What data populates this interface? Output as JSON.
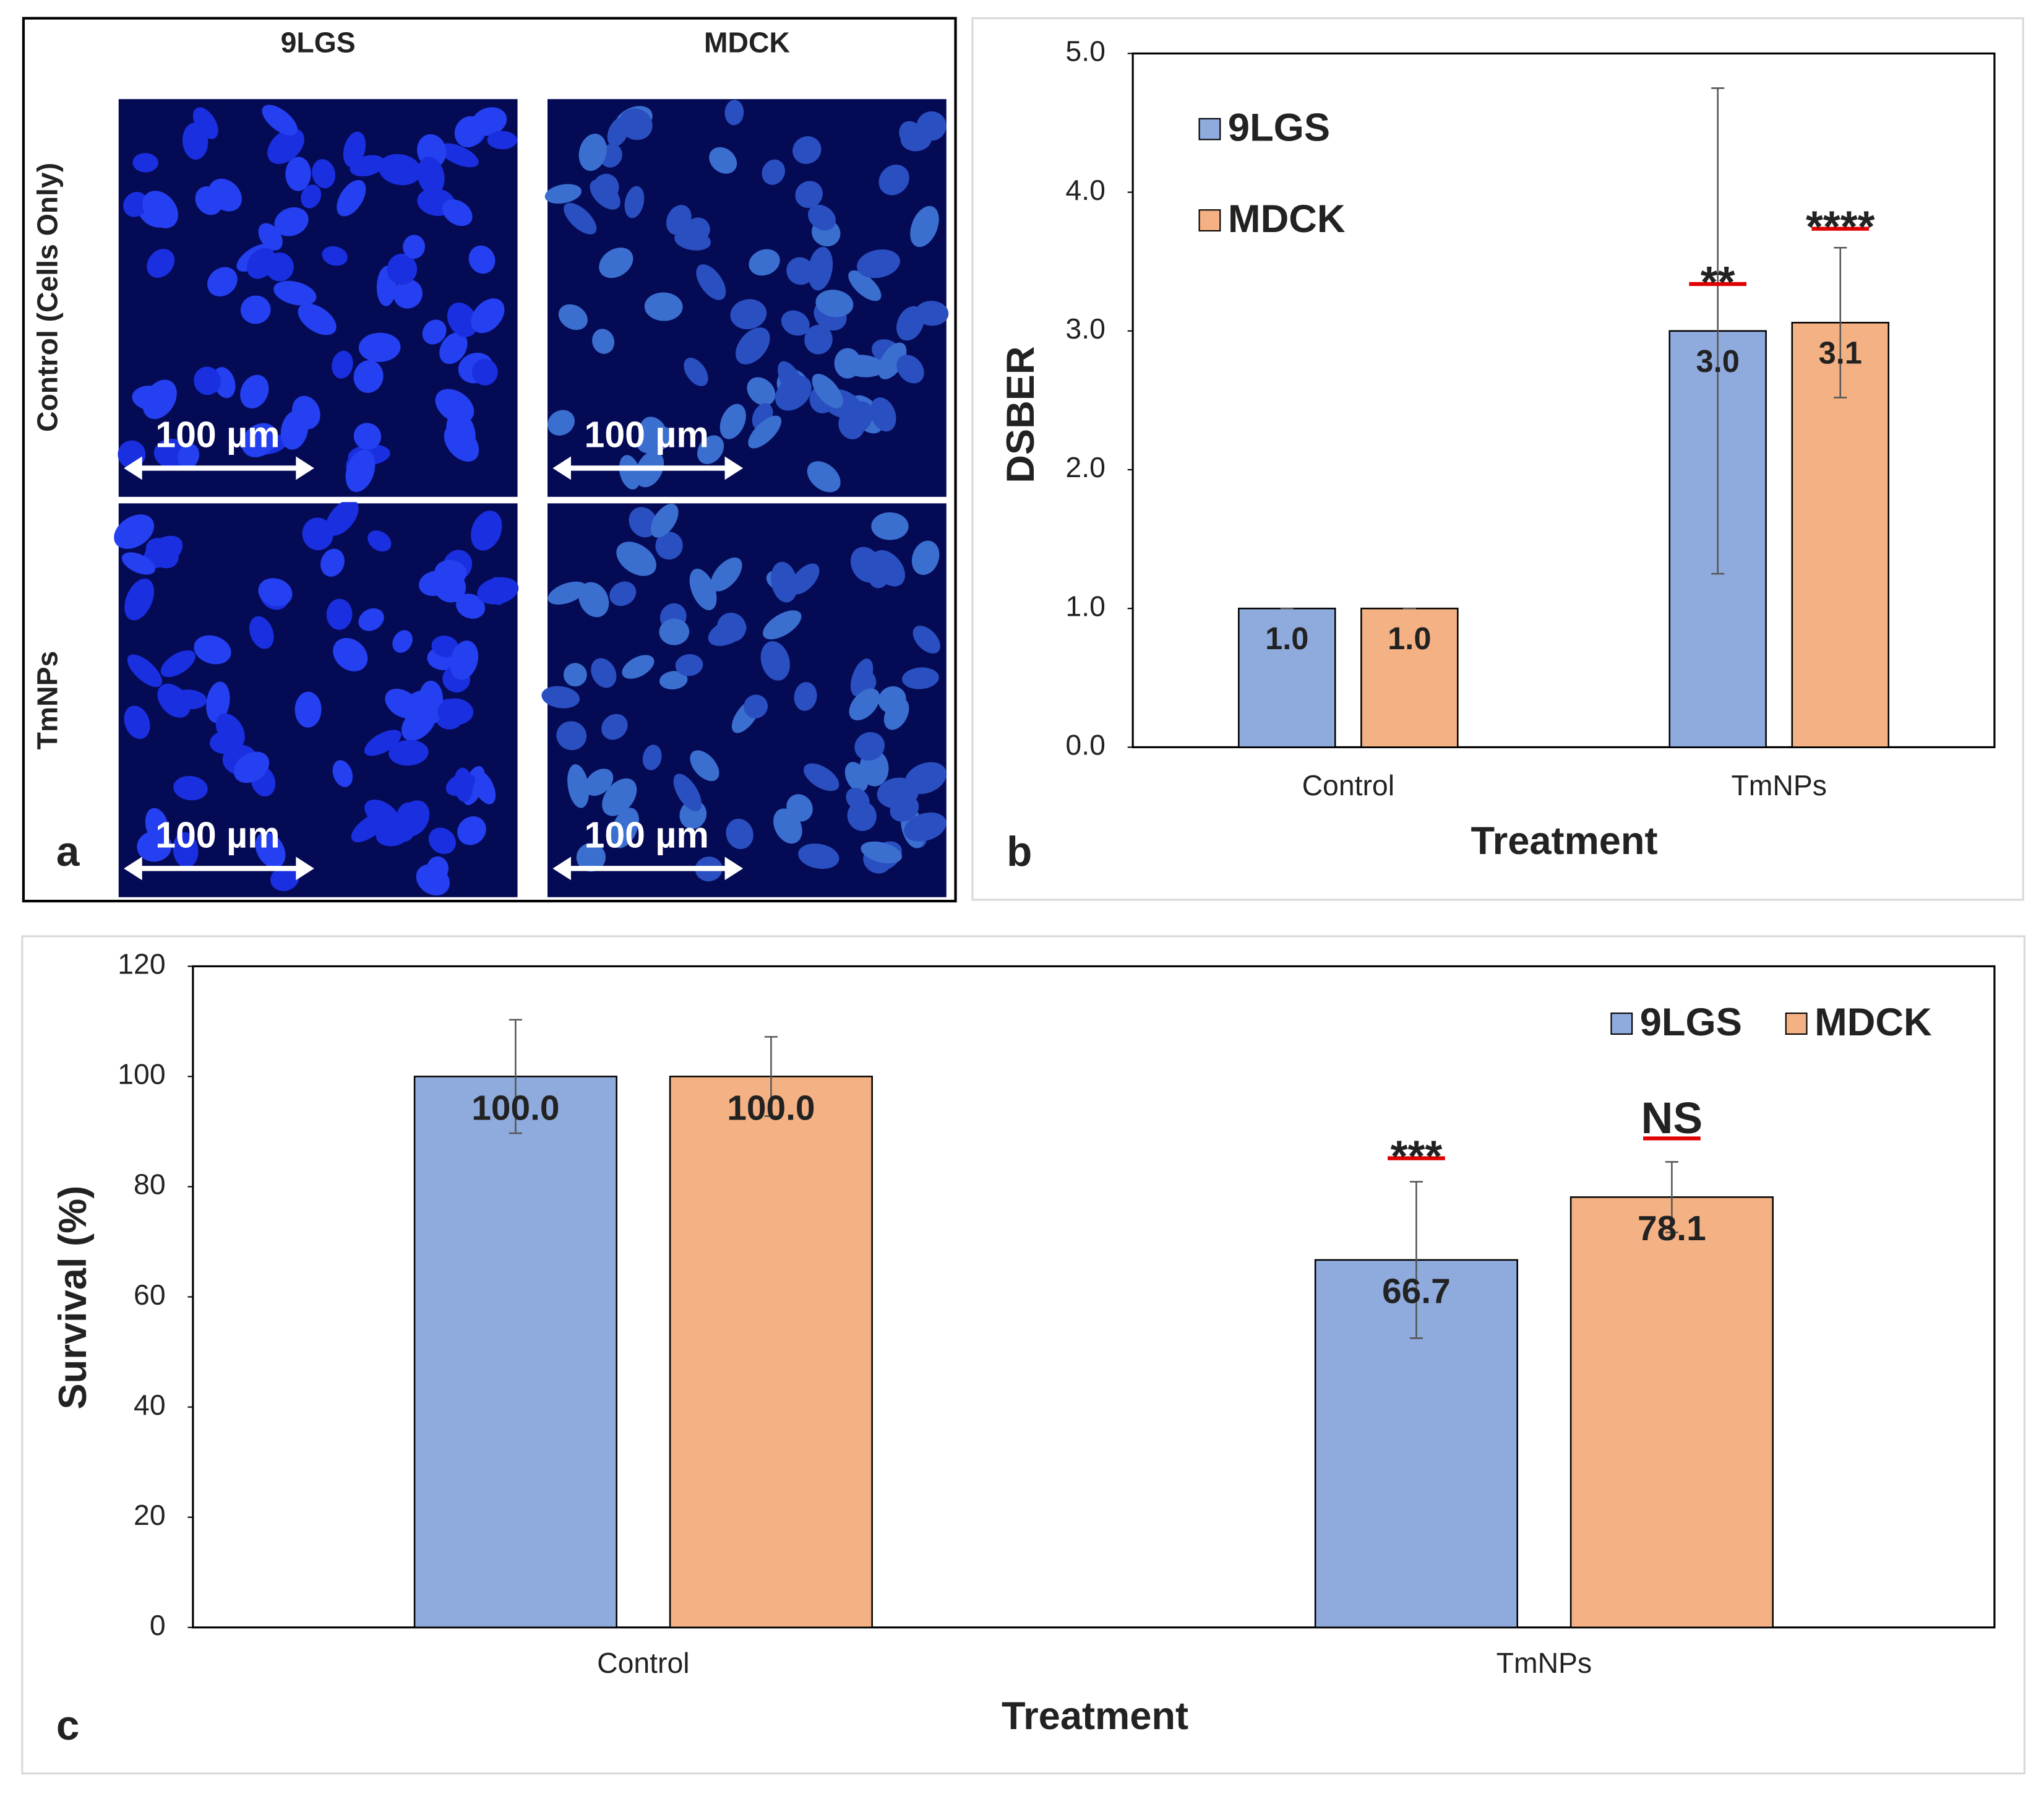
{
  "panel_a": {
    "label": "a",
    "columns": [
      "9LGS",
      "MDCK"
    ],
    "rows": [
      "Control (Cells Only)",
      "TmNPs"
    ],
    "scale_bar": "100 µm"
  },
  "chart_data": [
    {
      "type": "bar",
      "label": "b",
      "ylabel": "DSBER",
      "xlabel": "Treatment",
      "categories": [
        "Control",
        "TmNPs"
      ],
      "series": [
        {
          "name": "9LGS",
          "color": "#8faadc",
          "values": [
            1.0,
            3.0
          ],
          "value_labels": [
            "1.0",
            "3.0"
          ],
          "errors": [
            0,
            1.75
          ],
          "significance": [
            null,
            "**"
          ]
        },
        {
          "name": "MDCK",
          "color": "#f4b183",
          "values": [
            1.0,
            3.06
          ],
          "value_labels": [
            "1.0",
            "3.1"
          ],
          "errors": [
            0,
            0.54
          ],
          "significance": [
            null,
            "****"
          ]
        }
      ],
      "ylim": [
        0,
        5
      ],
      "yticks": [
        {
          "value": 0,
          "label": "0.0"
        },
        {
          "value": 1,
          "label": "1.0"
        },
        {
          "value": 2,
          "label": "2.0"
        },
        {
          "value": 3,
          "label": "3.0"
        },
        {
          "value": 4,
          "label": "4.0"
        },
        {
          "value": 5,
          "label": "5.0"
        }
      ],
      "legend": "upper left",
      "grid": false
    },
    {
      "type": "bar",
      "label": "c",
      "ylabel": "Survival (%)",
      "xlabel": "Treatment",
      "categories": [
        "Control",
        "TmNPs"
      ],
      "series": [
        {
          "name": "9LGS",
          "color": "#8faadc",
          "values": [
            100.0,
            66.7
          ],
          "value_labels": [
            "100.0",
            "66.7"
          ],
          "errors": [
            10.3,
            14.2
          ],
          "significance": [
            null,
            "***"
          ]
        },
        {
          "name": "MDCK",
          "color": "#f4b183",
          "values": [
            100.0,
            78.1
          ],
          "value_labels": [
            "100.0",
            "78.1"
          ],
          "errors": [
            7.2,
            6.4
          ],
          "significance": [
            null,
            "NS"
          ]
        }
      ],
      "ylim": [
        0,
        120
      ],
      "yticks": [
        0,
        20,
        40,
        60,
        80,
        100,
        120
      ],
      "legend": "upper right",
      "grid": false
    }
  ]
}
